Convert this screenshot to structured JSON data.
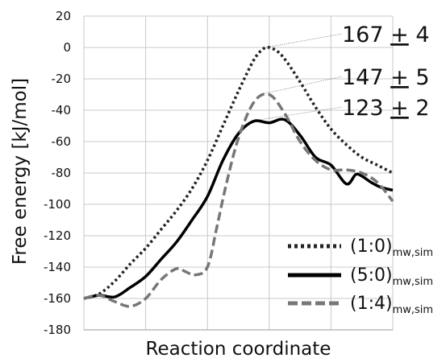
{
  "chart_data": {
    "type": "line",
    "xlabel": "Reaction coordinate",
    "ylabel": "Free energy [kJ/mol]",
    "ylim": [
      -180,
      20
    ],
    "yticks": [
      "20",
      "0",
      "-20",
      "-40",
      "-60",
      "-80",
      "-100",
      "-120",
      "-140",
      "-160",
      "-180"
    ],
    "grid": true,
    "legend_position": "bottom-right",
    "annotations": [
      {
        "main": "167",
        "pm": "+",
        "err": "4",
        "series": 0,
        "peak": [
          0.59,
          0
        ]
      },
      {
        "main": "147",
        "pm": "+",
        "err": "5",
        "series": 2,
        "peak": [
          0.57,
          -30
        ]
      },
      {
        "main": "123",
        "pm": "+",
        "err": "2",
        "series": 1,
        "peak": [
          0.57,
          -46
        ]
      }
    ],
    "series": [
      {
        "name": "(1:0)",
        "subscript": "mw,sim",
        "color": "#222222",
        "style": "dotted",
        "x": [
          0.0,
          0.05,
          0.1,
          0.15,
          0.2,
          0.25,
          0.3,
          0.35,
          0.4,
          0.45,
          0.5,
          0.55,
          0.58,
          0.6,
          0.63,
          0.66,
          0.7,
          0.75,
          0.8,
          0.85,
          0.9,
          0.95,
          1.0
        ],
        "y": [
          -160,
          -157,
          -149,
          -138,
          -128,
          -116,
          -104,
          -90,
          -72,
          -50,
          -28,
          -8,
          -1,
          0,
          -3,
          -10,
          -22,
          -38,
          -52,
          -62,
          -70,
          -75,
          -80
        ]
      },
      {
        "name": "(5:0)",
        "subscript": "mw,sim",
        "color": "#000000",
        "style": "solid",
        "x": [
          0.0,
          0.05,
          0.1,
          0.15,
          0.2,
          0.25,
          0.3,
          0.35,
          0.4,
          0.45,
          0.5,
          0.55,
          0.6,
          0.65,
          0.7,
          0.75,
          0.8,
          0.85,
          0.88,
          0.9,
          0.93,
          0.96,
          1.0
        ],
        "y": [
          -160,
          -158,
          -159,
          -153,
          -146,
          -135,
          -124,
          -110,
          -95,
          -72,
          -55,
          -47,
          -48,
          -46,
          -56,
          -70,
          -75,
          -87,
          -81,
          -82,
          -86,
          -89,
          -91
        ]
      },
      {
        "name": "(1:4)",
        "subscript": "mw,sim",
        "color": "#777777",
        "style": "dashed",
        "x": [
          0.0,
          0.05,
          0.1,
          0.15,
          0.2,
          0.25,
          0.3,
          0.33,
          0.36,
          0.4,
          0.43,
          0.46,
          0.5,
          0.55,
          0.6,
          0.65,
          0.7,
          0.75,
          0.8,
          0.85,
          0.9,
          0.95,
          1.0
        ],
        "y": [
          -160,
          -158,
          -162,
          -165,
          -160,
          -148,
          -141,
          -143,
          -145,
          -140,
          -115,
          -88,
          -58,
          -35,
          -30,
          -42,
          -60,
          -72,
          -78,
          -78,
          -80,
          -86,
          -98
        ]
      }
    ]
  }
}
